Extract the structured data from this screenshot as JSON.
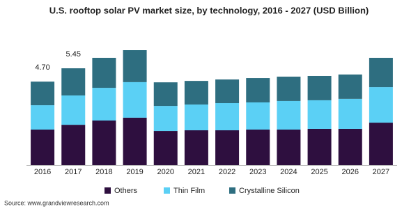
{
  "chart_data": {
    "type": "stacked-bar",
    "title": "U.S. rooftop solar PV market size, by technology, 2016 - 2027 (USD Billion)",
    "categories": [
      "2016",
      "2017",
      "2018",
      "2019",
      "2020",
      "2021",
      "2022",
      "2023",
      "2024",
      "2025",
      "2026",
      "2027"
    ],
    "series": [
      {
        "name": "Others",
        "color": "#2e0f3f",
        "values": [
          2.0,
          2.27,
          2.51,
          2.67,
          1.92,
          1.96,
          1.96,
          2.0,
          2.0,
          2.04,
          2.04,
          2.39
        ]
      },
      {
        "name": "Thin Film",
        "color": "#5bd0f5",
        "values": [
          1.37,
          1.65,
          1.84,
          2.0,
          1.41,
          1.45,
          1.53,
          1.53,
          1.61,
          1.61,
          1.69,
          2.0
        ]
      },
      {
        "name": "Crystalline Silicon",
        "color": "#2e6e80",
        "values": [
          1.33,
          1.53,
          1.69,
          1.8,
          1.33,
          1.33,
          1.33,
          1.37,
          1.37,
          1.37,
          1.37,
          1.65
        ]
      }
    ],
    "total_labels": [
      {
        "value": 4.7,
        "label": "4.70"
      },
      {
        "value": 5.45,
        "label": "5.45"
      }
    ],
    "ylim": [
      0,
      7
    ],
    "source": "Source: www.grandviewresearch.com"
  }
}
